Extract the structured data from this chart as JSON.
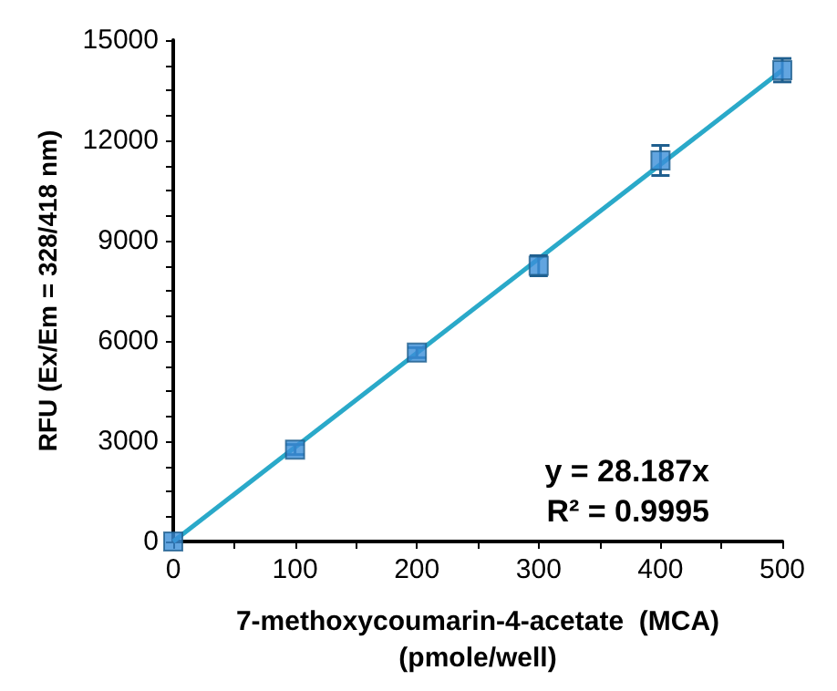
{
  "chart_data": {
    "type": "scatter",
    "xlabel": "7-methoxycoumarin-4-acetate  (MCA)\n(pmole/well)",
    "ylabel": "RFU (Ex/Em = 328/418 nm)",
    "x": [
      0,
      100,
      200,
      300,
      400,
      500
    ],
    "series": [
      {
        "color": "#3b8fd8",
        "values": [
          0,
          2750,
          5650,
          8250,
          11400,
          14100
        ],
        "errors": [
          null,
          150,
          150,
          300,
          450,
          350
        ],
        "marker": "square"
      },
      {
        "type": "line",
        "color": "#2aa9c9",
        "x": [
          0,
          500
        ],
        "values": [
          0,
          14100
        ],
        "marker": "none",
        "line_style": "solid"
      }
    ],
    "xlim": [
      0,
      500
    ],
    "xticks": [
      0,
      {
        "value": 50,
        "label": null
      },
      100,
      {
        "value": 150,
        "label": null
      },
      200,
      {
        "value": 250,
        "label": null
      },
      300,
      {
        "value": 350,
        "label": null
      },
      400,
      {
        "value": 450,
        "label": null
      },
      500
    ],
    "ylim": [
      0,
      15000
    ],
    "yticks": [
      0,
      {
        "value": 750,
        "label": null
      },
      {
        "value": 1500,
        "label": null
      },
      {
        "value": 2250,
        "label": null
      },
      3000,
      {
        "value": 3750,
        "label": null
      },
      {
        "value": 4500,
        "label": null
      },
      {
        "value": 5250,
        "label": null
      },
      6000,
      {
        "value": 6750,
        "label": null
      },
      {
        "value": 7500,
        "label": null
      },
      {
        "value": 8250,
        "label": null
      },
      9000,
      {
        "value": 9750,
        "label": null
      },
      {
        "value": 10500,
        "label": null
      },
      {
        "value": 11250,
        "label": null
      },
      12000,
      {
        "value": 12750,
        "label": null
      },
      {
        "value": 13500,
        "label": null
      },
      {
        "value": 14250,
        "label": null
      },
      15000
    ],
    "annotations": [
      "y = 28.187x",
      "R² = 0.9995"
    ],
    "grid": false
  }
}
